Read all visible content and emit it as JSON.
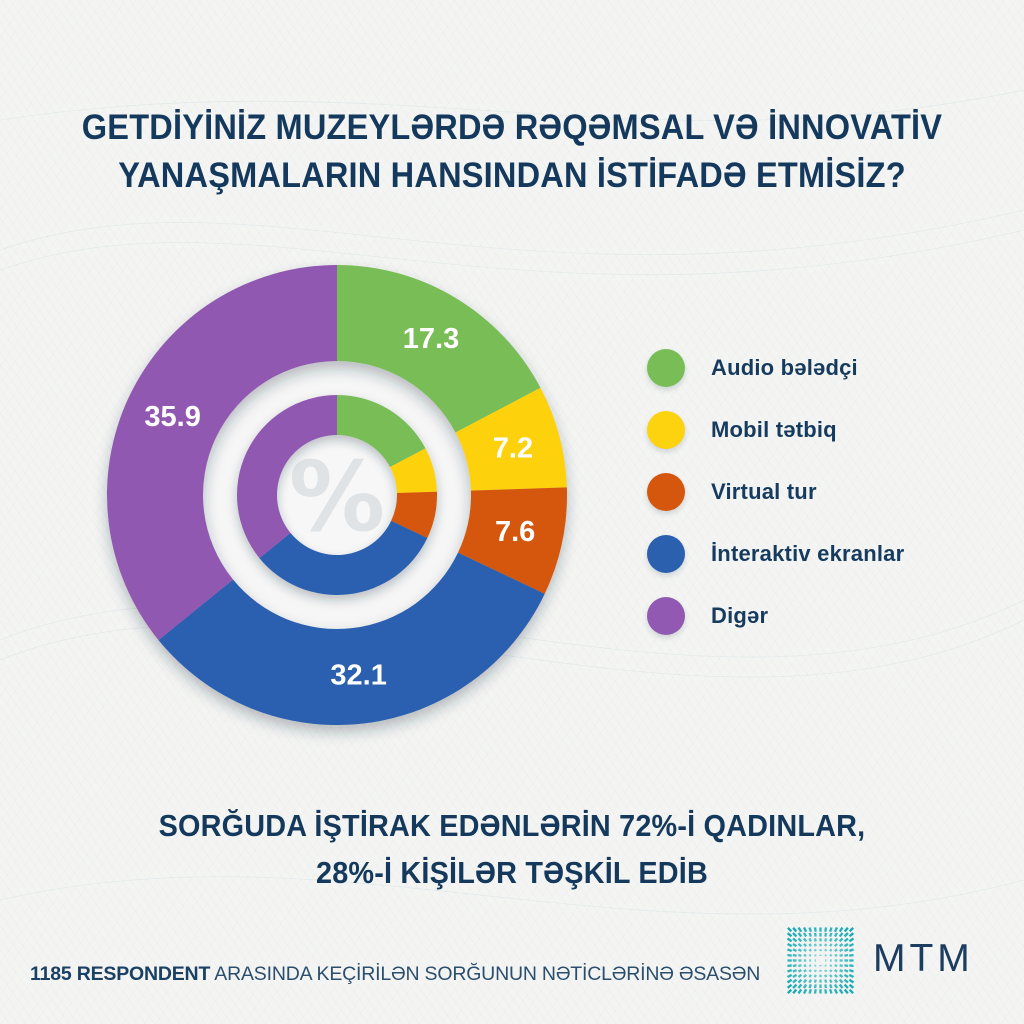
{
  "title": {
    "line1": "GETDİYİNİZ MUZEYLƏRDƏ RƏQƏMSAL VƏ İNNOVATİV",
    "line2": "YANAŞMALARIN HANSINDAN İSTİFADƏ ETMİSİZ?"
  },
  "chart_data": {
    "type": "pie",
    "style": "double-ring-donut",
    "start_angle_deg": 0,
    "direction": "clockwise",
    "center_symbol": "%",
    "legend_position": "right",
    "value_label_color": "#ffffff",
    "segments": [
      {
        "label": "Audio bələdçi",
        "value": 17.3,
        "color": "#79bd56"
      },
      {
        "label": "Mobil tətbiq",
        "value": 7.2,
        "color": "#fdd20e"
      },
      {
        "label": "Virtual tur",
        "value": 7.6,
        "color": "#d5570d"
      },
      {
        "label": "İnteraktiv ekranlar",
        "value": 32.1,
        "color": "#2b60af"
      },
      {
        "label": "Digər",
        "value": 35.9,
        "color": "#9159b1"
      }
    ]
  },
  "stats": {
    "line1": "SORĞUDA İŞTİRAK EDƏNLƏRİN 72%-İ QADINLAR,",
    "line2": "28%-İ KİŞİLƏR TƏŞKİL EDİB"
  },
  "footer": {
    "bold": "1185 RESPONDENT",
    "rest": " ARASINDA KEÇİRİLƏN SORĞUNUN NƏTİCLƏRİNƏ ƏSASƏN"
  },
  "logo": {
    "text": "MTM"
  },
  "colors": {
    "background": "#f4f5f3",
    "heading_text": "#14395c",
    "ring_gap": "#f5f6f5",
    "center_disc": "#f6f7f6",
    "center_symbol": "#dfe3e6",
    "logo_teal_dark": "#17a8b3",
    "logo_teal_light": "#8fdce0"
  }
}
